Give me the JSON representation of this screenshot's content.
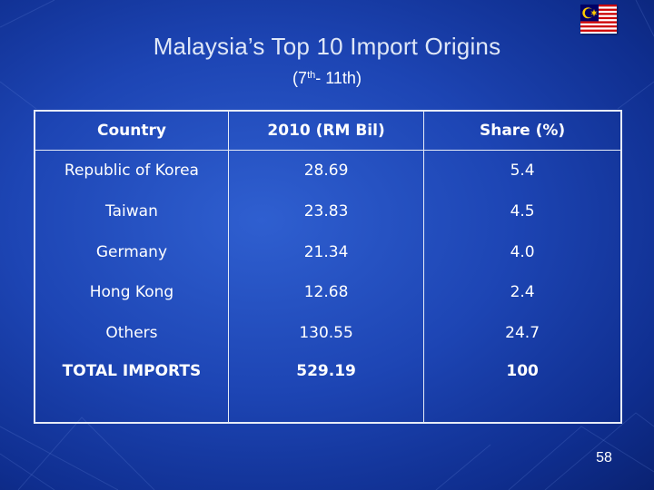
{
  "slide": {
    "title": "Malaysia’s Top 10 Import Origins",
    "subtitle_pre": "(7",
    "subtitle_sup": "th",
    "subtitle_post": "- 11th)",
    "page_number": "58",
    "flag_icon": "malaysia-flag-icon"
  },
  "table": {
    "headers": [
      "Country",
      "2010 (RM Bil)",
      "Share (%)"
    ],
    "rows": [
      [
        "Republic of Korea",
        "28.69",
        "5.4"
      ],
      [
        "Taiwan",
        "23.83",
        "4.5"
      ],
      [
        "Germany",
        "21.34",
        "4.0"
      ],
      [
        "Hong Kong",
        "12.68",
        "2.4"
      ],
      [
        "Others",
        "130.55",
        "24.7"
      ],
      [
        "TOTAL IMPORTS",
        "529.19",
        "100"
      ]
    ]
  },
  "colors": {
    "background_center": "#2f5fd0",
    "background_edge": "#0a2272",
    "title_text": "#dfe7f7",
    "table_border": "#e6ebf7"
  }
}
